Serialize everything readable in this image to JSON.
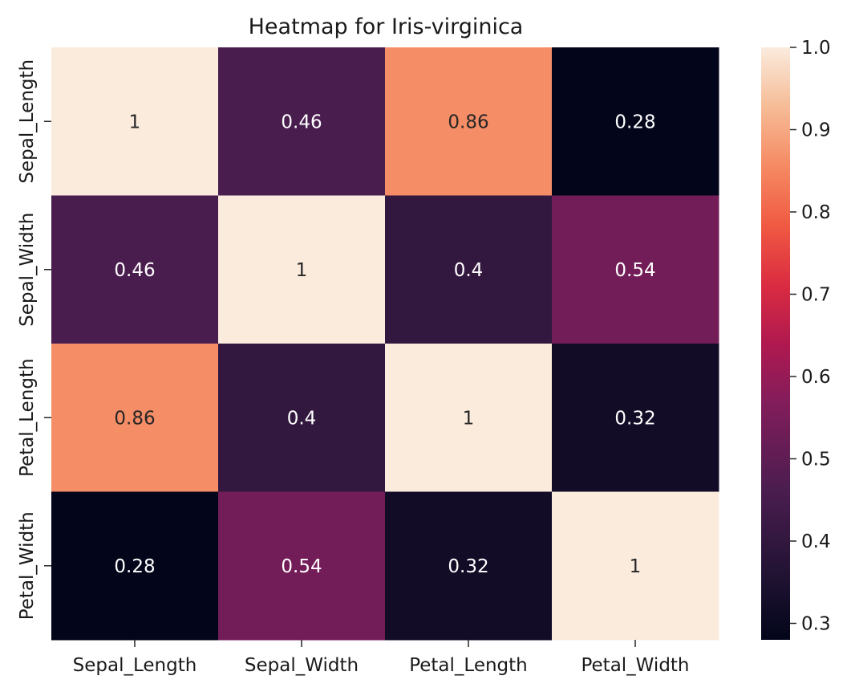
{
  "chart_data": {
    "type": "heatmap",
    "title": "Heatmap for Iris-virginica",
    "x_categories": [
      "Sepal_Length",
      "Sepal_Width",
      "Petal_Length",
      "Petal_Width"
    ],
    "y_categories": [
      "Sepal_Length",
      "Sepal_Width",
      "Petal_Length",
      "Petal_Width"
    ],
    "values": [
      [
        1.0,
        0.46,
        0.86,
        0.28
      ],
      [
        0.46,
        1.0,
        0.4,
        0.54
      ],
      [
        0.86,
        0.4,
        1.0,
        0.32
      ],
      [
        0.28,
        0.54,
        0.32,
        1.0
      ]
    ],
    "cell_labels": [
      [
        "1",
        "0.46",
        "0.86",
        "0.28"
      ],
      [
        "0.46",
        "1",
        "0.4",
        "0.54"
      ],
      [
        "0.86",
        "0.4",
        "1",
        "0.32"
      ],
      [
        "0.28",
        "0.54",
        "0.32",
        "1"
      ]
    ],
    "colorbar": {
      "colormap": "rocket",
      "range": [
        0.28,
        1.0
      ],
      "ticks": [
        0.3,
        0.4,
        0.5,
        0.6,
        0.7,
        0.8,
        0.9,
        1.0
      ],
      "tick_labels": [
        "0.3",
        "0.4",
        "0.5",
        "0.6",
        "0.7",
        "0.8",
        "0.9",
        "1.0"
      ]
    }
  }
}
